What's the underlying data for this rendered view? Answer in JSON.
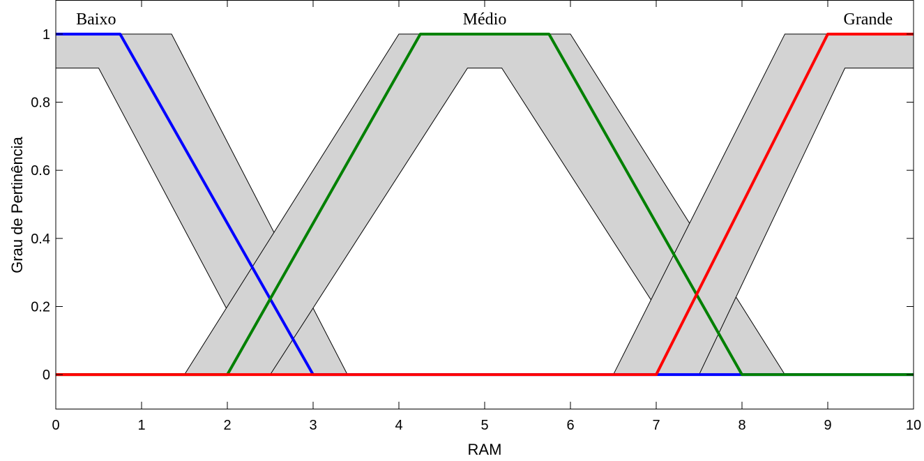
{
  "chart_data": {
    "type": "line",
    "title": "",
    "xlabel": "RAM",
    "ylabel": "Grau de Pertinência",
    "xlim": [
      0,
      10
    ],
    "ylim": [
      -0.1,
      1.1
    ],
    "xticks": [
      "0",
      "1",
      "2",
      "3",
      "4",
      "5",
      "6",
      "7",
      "8",
      "9",
      "10"
    ],
    "yticks": [
      "0",
      "0.2",
      "0.4",
      "0.6",
      "0.8",
      "1"
    ],
    "grid": false,
    "band_color": "#d3d3d3",
    "band_edge_color": "#000000",
    "series": [
      {
        "name": "Baixo",
        "color": "#0000ff",
        "x": [
          0,
          0.75,
          3,
          10
        ],
        "y": [
          1,
          1,
          0,
          0
        ],
        "band_upper": {
          "x": [
            0,
            1.35,
            3.4,
            10
          ],
          "y": [
            1,
            1,
            0,
            0
          ]
        },
        "band_lower": {
          "x": [
            0,
            0.5,
            2.4,
            10
          ],
          "y": [
            0.9,
            0.9,
            0,
            0
          ]
        }
      },
      {
        "name": "Médio",
        "color": "#008000",
        "x": [
          0,
          2,
          4.25,
          5.75,
          8,
          10
        ],
        "y": [
          0,
          0,
          1,
          1,
          0,
          0
        ],
        "band_upper": {
          "x": [
            0,
            1.5,
            4,
            6,
            8.5,
            10
          ],
          "y": [
            0,
            0,
            1,
            1,
            0,
            0
          ]
        },
        "band_lower": {
          "x": [
            0,
            2.5,
            4.8,
            5.2,
            7.5,
            10
          ],
          "y": [
            0,
            0,
            0.9,
            0.9,
            0,
            0
          ]
        }
      },
      {
        "name": "Grande",
        "color": "#ff0000",
        "x": [
          0,
          7,
          9,
          10
        ],
        "y": [
          0,
          0,
          1,
          1
        ],
        "band_upper": {
          "x": [
            0,
            6.5,
            8.5,
            10
          ],
          "y": [
            0,
            0,
            1,
            1
          ]
        },
        "band_lower": {
          "x": [
            0,
            7.5,
            9.2,
            10
          ],
          "y": [
            0,
            0,
            0.9,
            0.9
          ]
        }
      }
    ],
    "set_labels": [
      {
        "text": "Baixo",
        "x": 0.47
      },
      {
        "text": "Médio",
        "x": 5
      },
      {
        "text": "Grande",
        "x": 9.47
      }
    ]
  }
}
